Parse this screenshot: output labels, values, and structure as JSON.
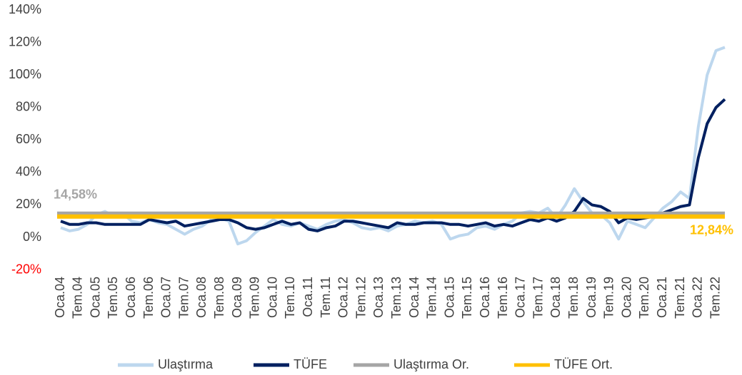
{
  "chart_data": {
    "type": "line",
    "categories": [
      "Oca.04",
      null,
      "Tem.04",
      null,
      "Oca.05",
      null,
      "Tem.05",
      null,
      "Oca.06",
      null,
      "Tem.06",
      null,
      "Oca.07",
      null,
      "Tem.07",
      null,
      "Oca.08",
      null,
      "Tem.08",
      null,
      "Oca.09",
      null,
      "Tem.09",
      null,
      "Oca.10",
      null,
      "Tem.10",
      null,
      "Oca.11",
      null,
      "Tem.11",
      null,
      "Oca.12",
      null,
      "Tem.12",
      null,
      "Oca.13",
      null,
      "Tem.13",
      null,
      "Oca.14",
      null,
      "Tem.14",
      null,
      "Oca.15",
      null,
      "Tem.15",
      null,
      "Oca.16",
      null,
      "Tem.16",
      null,
      "Oca.17",
      null,
      "Tem.17",
      null,
      "Oca.18",
      null,
      "Tem.18",
      null,
      "Oca.19",
      null,
      "Tem.19",
      null,
      "Oca.20",
      null,
      "Tem.20",
      null,
      "Oca.21",
      null,
      "Tem.21",
      null,
      "Oca.22",
      null,
      "Tem.22",
      null
    ],
    "series": [
      {
        "name": "Ulaştırma",
        "color": "#bdd7ee",
        "values": [
          6,
          4,
          5,
          8,
          14,
          16,
          13,
          15,
          10,
          9,
          11,
          9,
          8,
          5,
          2,
          5,
          7,
          11,
          12,
          10,
          -4,
          -2,
          3,
          7,
          11,
          8,
          7,
          9,
          7,
          5,
          8,
          10,
          11,
          9,
          6,
          5,
          6,
          4,
          7,
          8,
          10,
          9,
          10,
          8,
          -1,
          1,
          2,
          6,
          7,
          5,
          8,
          10,
          15,
          16,
          15,
          18,
          12,
          20,
          30,
          22,
          15,
          14,
          9,
          -1,
          10,
          8,
          6,
          12,
          18,
          22,
          28,
          24,
          68,
          100,
          115,
          117
        ]
      },
      {
        "name": "TÜFE",
        "color": "#002060",
        "values": [
          10,
          8,
          8,
          9,
          9,
          8,
          8,
          8,
          8,
          8,
          11,
          10,
          9,
          10,
          7,
          8,
          9,
          10,
          11,
          11,
          9,
          6,
          5,
          6,
          8,
          10,
          8,
          9,
          5,
          4,
          6,
          7,
          10,
          10,
          9,
          8,
          7,
          6,
          9,
          8,
          8,
          9,
          9,
          9,
          8,
          8,
          7,
          8,
          9,
          7,
          8,
          7,
          9,
          11,
          10,
          12,
          10,
          12,
          16,
          24,
          20,
          19,
          16,
          9,
          12,
          11,
          12,
          13,
          15,
          17,
          19,
          20,
          49,
          70,
          80,
          85
        ]
      }
    ],
    "averages": [
      {
        "name": "Ulaştırma Or.",
        "color": "#a5a5a5",
        "value": 14.58,
        "value_label": "14,58%"
      },
      {
        "name": "TÜFE Ort.",
        "color": "#ffc000",
        "value": 12.84,
        "value_label": "12,84%"
      }
    ],
    "ylim": [
      -20,
      140
    ],
    "yticks": [
      {
        "value": -20,
        "label": "-20%",
        "color": "#ff0000"
      },
      {
        "value": 0,
        "label": "0%"
      },
      {
        "value": 20,
        "label": "20%"
      },
      {
        "value": 40,
        "label": "40%"
      },
      {
        "value": 60,
        "label": "60%"
      },
      {
        "value": 80,
        "label": "80%"
      },
      {
        "value": 100,
        "label": "100%"
      },
      {
        "value": 120,
        "label": "120%"
      },
      {
        "value": 140,
        "label": "140%"
      }
    ],
    "legend": "bottom"
  }
}
